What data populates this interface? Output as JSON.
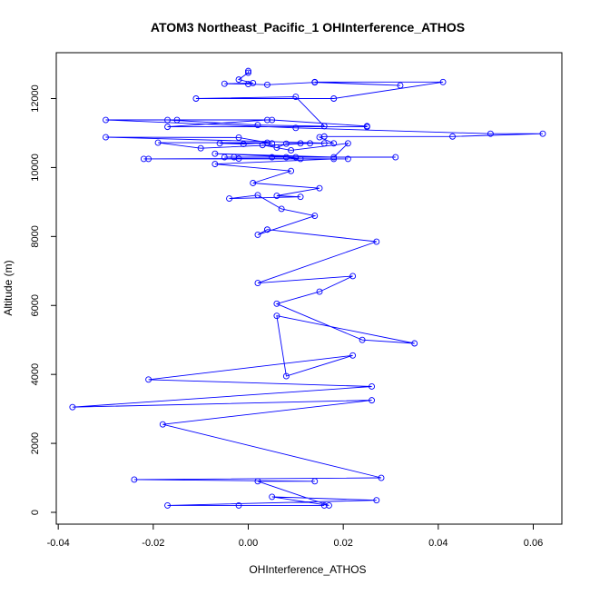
{
  "chart_data": {
    "type": "line",
    "title": "ATOM3 Northeast_Pacific_1 OHInterference_ATHOS",
    "xlabel": "OHInterference_ATHOS",
    "ylabel": "Altitude (m)",
    "xlim": [
      -0.04,
      0.065
    ],
    "ylim": [
      -200,
      13200
    ],
    "xticks": [
      -0.04,
      -0.02,
      0.0,
      0.02,
      0.04,
      0.06
    ],
    "xtick_labels": [
      "-0.04",
      "-0.02",
      "0.00",
      "0.02",
      "0.04",
      "0.06"
    ],
    "yticks": [
      0,
      2000,
      4000,
      6000,
      8000,
      10000,
      12000
    ],
    "ytick_labels": [
      "0",
      "2000",
      "4000",
      "6000",
      "8000",
      "10000",
      "12000"
    ],
    "grid": false,
    "marker": "open-circle",
    "series": [
      {
        "color": "#0000ff",
        "x": [
          0.0,
          0.0,
          -0.002,
          0.001,
          -0.005,
          0.0,
          0.004,
          0.014,
          0.032,
          0.014,
          0.041,
          0.018,
          -0.011,
          0.01,
          0.016,
          0.002,
          -0.017,
          -0.015,
          0.005,
          0.025,
          0.025,
          -0.017,
          0.004,
          -0.03,
          0.01,
          0.051,
          0.062,
          0.043,
          0.016,
          0.015,
          0.018,
          -0.03,
          -0.002,
          0.005,
          -0.006,
          -0.001,
          0.004,
          -0.019,
          -0.01,
          0.013,
          0.016,
          0.011,
          0.008,
          0.006,
          0.003,
          0.009,
          0.021,
          0.018,
          -0.007,
          0.01,
          0.005,
          -0.005,
          -0.003,
          0.031,
          0.008,
          0.011,
          0.021,
          -0.002,
          -0.021,
          -0.022,
          0.018,
          -0.007,
          0.009,
          0.001,
          0.015,
          0.006,
          0.011,
          -0.004,
          0.002,
          0.007,
          0.014,
          0.002,
          0.004,
          0.027,
          0.002,
          0.022,
          0.015,
          0.006,
          0.024,
          0.035,
          0.006,
          0.008,
          0.022,
          -0.021,
          0.026,
          -0.037,
          0.026,
          -0.018,
          0.028,
          -0.024,
          0.014,
          0.002,
          0.017,
          0.005,
          0.027,
          -0.017,
          0.016,
          -0.002
        ],
        "y": [
          12800,
          12750,
          12550,
          12450,
          12430,
          12420,
          12400,
          12470,
          12380,
          12480,
          12480,
          12000,
          12000,
          12050,
          11200,
          11230,
          11380,
          11380,
          11380,
          11200,
          11180,
          11180,
          11380,
          11380,
          11150,
          10980,
          10980,
          10900,
          10900,
          10880,
          10700,
          10880,
          10870,
          10700,
          10700,
          10680,
          10720,
          10720,
          10560,
          10700,
          10700,
          10700,
          10690,
          10580,
          10650,
          10500,
          10700,
          10300,
          10400,
          10300,
          10300,
          10300,
          10300,
          10300,
          10300,
          10250,
          10250,
          10260,
          10250,
          10250,
          10250,
          10100,
          9900,
          9550,
          9400,
          9180,
          9150,
          9100,
          9200,
          8800,
          8600,
          8050,
          8200,
          7850,
          6650,
          6850,
          6400,
          6050,
          5000,
          4900,
          5700,
          3950,
          4550,
          3850,
          3650,
          3050,
          3250,
          2550,
          1000,
          950,
          900,
          900,
          200,
          450,
          350,
          200,
          200,
          200
        ]
      }
    ]
  }
}
